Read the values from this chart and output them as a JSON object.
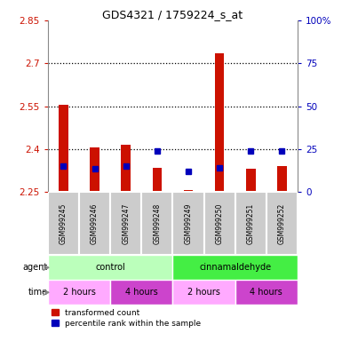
{
  "title": "GDS4321 / 1759224_s_at",
  "samples": [
    "GSM999245",
    "GSM999246",
    "GSM999247",
    "GSM999248",
    "GSM999249",
    "GSM999250",
    "GSM999251",
    "GSM999252"
  ],
  "red_top": [
    2.555,
    2.405,
    2.415,
    2.335,
    2.258,
    2.735,
    2.33,
    2.34
  ],
  "red_bottom": [
    2.255,
    2.255,
    2.255,
    2.255,
    2.255,
    2.255,
    2.255,
    2.255
  ],
  "blue_vals": [
    2.34,
    2.33,
    2.34,
    2.395,
    2.322,
    2.335,
    2.395,
    2.395
  ],
  "ylim_left": [
    2.25,
    2.85
  ],
  "ylim_right": [
    0,
    100
  ],
  "yticks_left": [
    2.25,
    2.4,
    2.55,
    2.7,
    2.85
  ],
  "ytick_labels_left": [
    "2.25",
    "2.4",
    "2.55",
    "2.7",
    "2.85"
  ],
  "yticks_right": [
    0,
    25,
    50,
    75,
    100
  ],
  "ytick_labels_right": [
    "0",
    "25",
    "50",
    "75",
    "100%"
  ],
  "gridlines": [
    2.4,
    2.55,
    2.7
  ],
  "agent_groups": [
    {
      "label": "control",
      "start": 0,
      "end": 4,
      "color": "#bbffbb"
    },
    {
      "label": "cinnamaldehyde",
      "start": 4,
      "end": 8,
      "color": "#44ee44"
    }
  ],
  "time_groups": [
    {
      "label": "2 hours",
      "start": 0,
      "end": 2,
      "color": "#ffaaff"
    },
    {
      "label": "4 hours",
      "start": 2,
      "end": 4,
      "color": "#cc44cc"
    },
    {
      "label": "2 hours",
      "start": 4,
      "end": 6,
      "color": "#ffaaff"
    },
    {
      "label": "4 hours",
      "start": 6,
      "end": 8,
      "color": "#cc44cc"
    }
  ],
  "sample_bg_color": "#cccccc",
  "sample_border_color": "#ffffff",
  "red_color": "#cc1100",
  "blue_color": "#0000bb",
  "legend_red": "transformed count",
  "legend_blue": "percentile rank within the sample",
  "agent_label": "agent",
  "time_label": "time",
  "bar_width": 0.3
}
